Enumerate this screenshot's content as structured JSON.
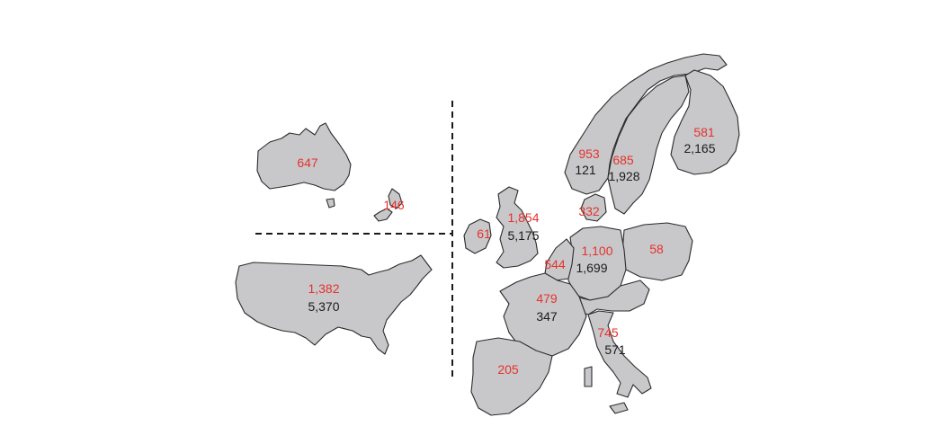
{
  "colors": {
    "red_value": "#e5322d",
    "black_value": "#1a1a1a",
    "land": "#c8c8ca",
    "outline": "#2b2b2b"
  },
  "regions": {
    "australia": {
      "red": "647"
    },
    "new_zealand": {
      "red": "146"
    },
    "usa": {
      "red": "1,382",
      "black": "5,370"
    },
    "ireland": {
      "red": "61"
    },
    "uk": {
      "red": "1,854",
      "black": "5,175"
    },
    "norway": {
      "red": "953",
      "black": "121"
    },
    "sweden": {
      "red": "685",
      "black": "1,928"
    },
    "finland": {
      "red": "581",
      "black": "2,165"
    },
    "denmark": {
      "red": "332"
    },
    "germany": {
      "red": "1,100",
      "black": "1,699"
    },
    "netherlands_belgium": {
      "red": "544"
    },
    "poland": {
      "red": "58"
    },
    "france": {
      "red": "479",
      "black": "347"
    },
    "italy": {
      "red": "745",
      "black": "571"
    },
    "spain": {
      "red": "205"
    }
  }
}
